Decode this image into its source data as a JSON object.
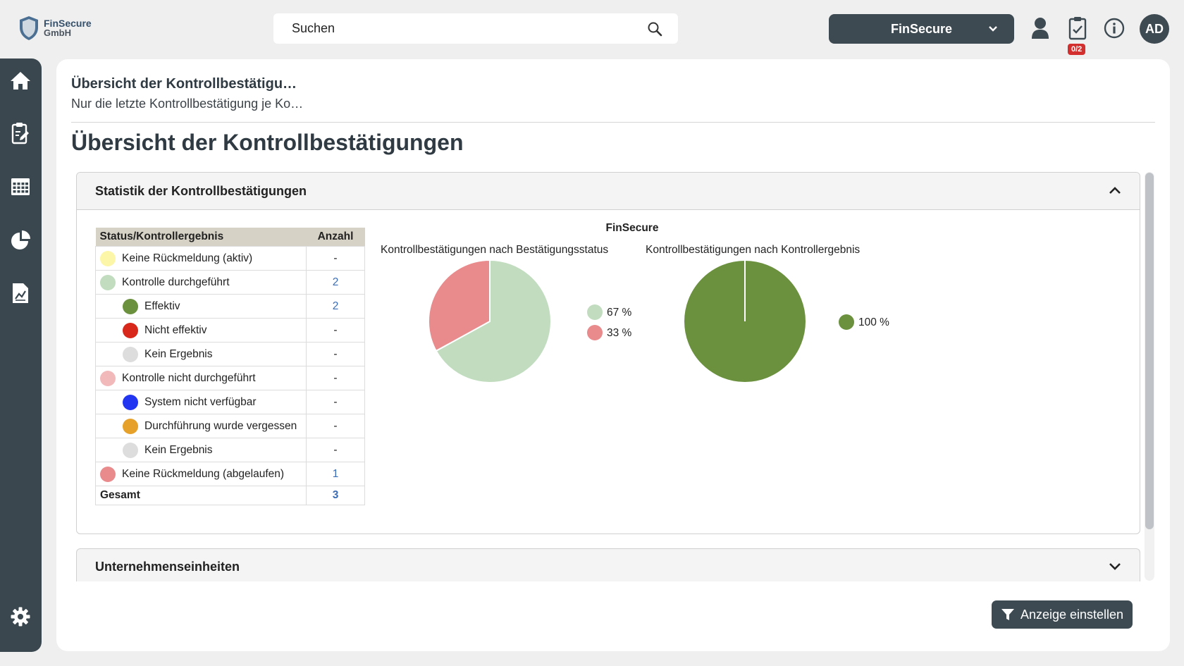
{
  "header": {
    "logo_line1": "FinSecure",
    "logo_line2": "GmbH",
    "search_placeholder": "Suchen",
    "tenant_label": "FinSecure",
    "tasks_badge": "0/2",
    "avatar_initials": "AD"
  },
  "sidebar": {
    "items": [
      "home-icon",
      "task-edit-icon",
      "calendar-icon",
      "pie-chart-icon",
      "report-icon"
    ],
    "settings": "gear-icon"
  },
  "main": {
    "breadcrumb_title": "Übersicht der Kontrollbestätigu…",
    "breadcrumb_subtitle": "Nur die letzte Kontrollbestätigung je Ko…",
    "page_title": "Übersicht der Kontrollbestätigungen",
    "panel_stats_title": "Statistik der Kontrollbestätigungen",
    "panel_units_title": "Unternehmenseinheiten",
    "filter_button": "Anzeige einstellen"
  },
  "table": {
    "headers": [
      "Status/Kontrollergebnis",
      "Anzahl"
    ],
    "rows": [
      {
        "label": "Keine Rückmeldung (aktiv)",
        "count": "-",
        "color": "#fcf7a8",
        "indent": false
      },
      {
        "label": "Kontrolle durchgeführt",
        "count": "2",
        "color": "#c1dcbf",
        "indent": false
      },
      {
        "label": "Effektiv",
        "count": "2",
        "color": "#6b913f",
        "indent": true
      },
      {
        "label": "Nicht effektiv",
        "count": "-",
        "color": "#d8281c",
        "indent": true
      },
      {
        "label": "Kein Ergebnis",
        "count": "-",
        "color": "#dddddd",
        "indent": true
      },
      {
        "label": "Kontrolle nicht durchgeführt",
        "count": "-",
        "color": "#f2b9bb",
        "indent": false
      },
      {
        "label": "System nicht verfügbar",
        "count": "-",
        "color": "#2236f2",
        "indent": true
      },
      {
        "label": "Durchführung wurde vergessen",
        "count": "-",
        "color": "#e6a12b",
        "indent": true
      },
      {
        "label": "Kein Ergebnis",
        "count": "-",
        "color": "#dddddd",
        "indent": true
      },
      {
        "label": "Keine Rückmeldung (abgelaufen)",
        "count": "1",
        "color": "#e98a8c",
        "indent": false
      }
    ],
    "total_label": "Gesamt",
    "total_count": "3"
  },
  "chart_data": [
    {
      "type": "pie",
      "title": "FinSecure",
      "subtitle": "Kontrollbestätigungen nach Bestätigungsstatus",
      "slices": [
        {
          "value": 67,
          "label": "67 %",
          "color": "#c1dcbf"
        },
        {
          "value": 33,
          "label": "33 %",
          "color": "#e98a8c"
        }
      ]
    },
    {
      "type": "pie",
      "title": "FinSecure",
      "subtitle": "Kontrollbestätigungen nach Kontrollergebnis",
      "slices": [
        {
          "value": 100,
          "label": "100 %",
          "color": "#6b913f"
        }
      ]
    }
  ]
}
